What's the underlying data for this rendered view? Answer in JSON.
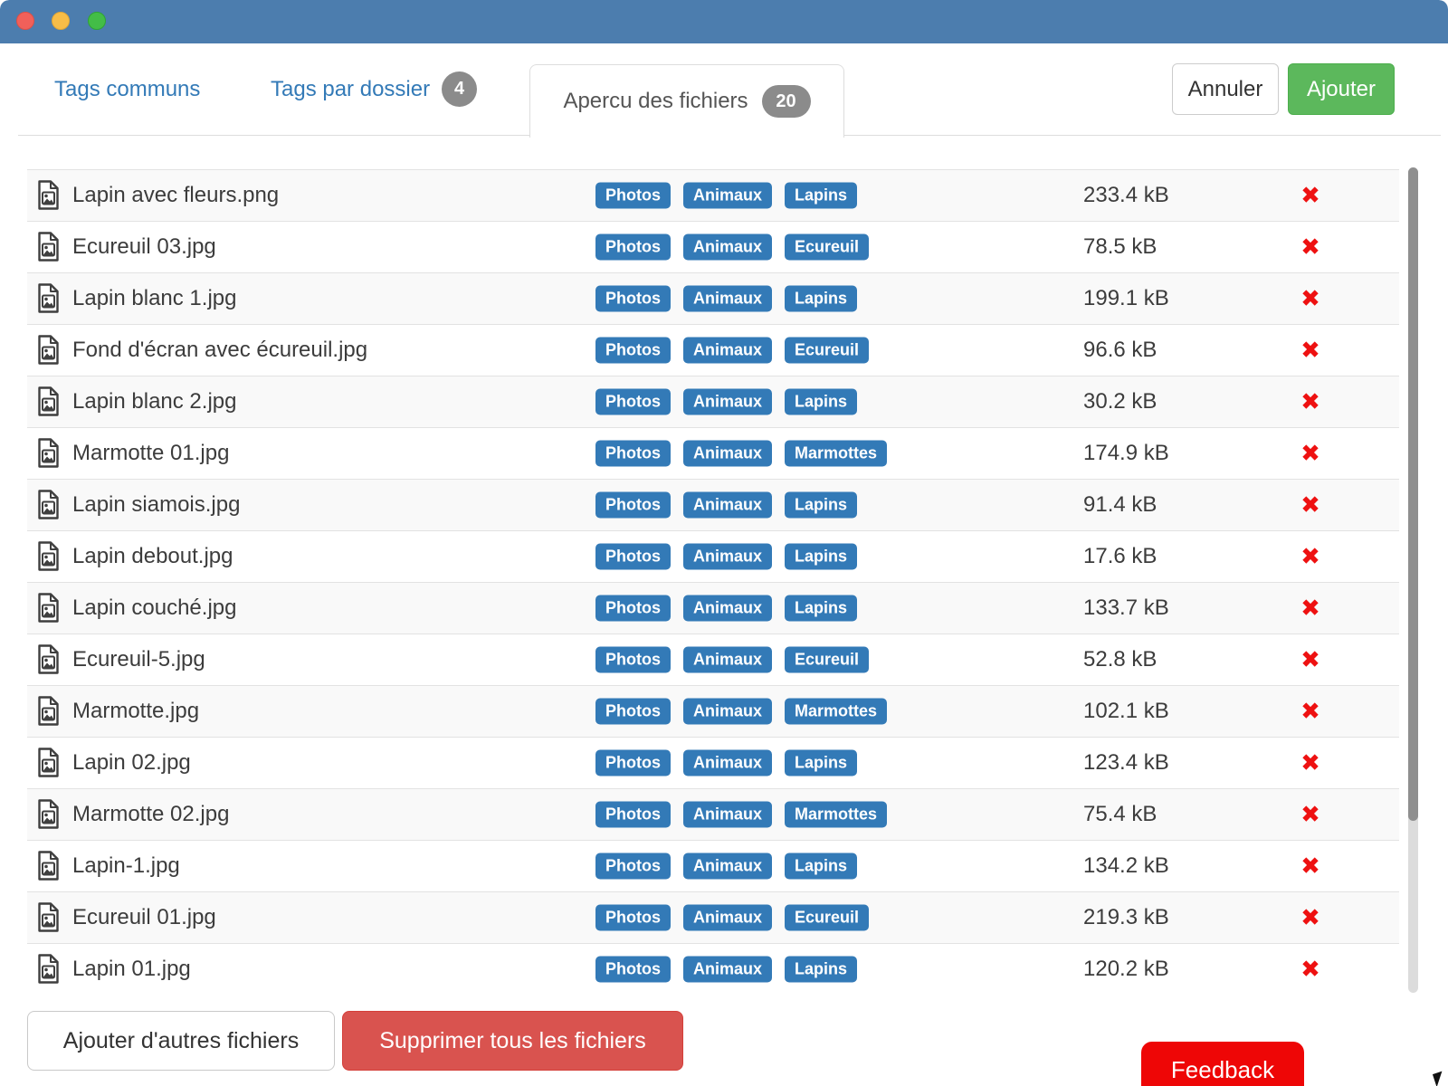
{
  "window": {
    "titlebar_color": "#4c7dae"
  },
  "tabs": [
    {
      "label": "Tags communs",
      "badge": null,
      "active": false
    },
    {
      "label": "Tags par dossier",
      "badge": "4",
      "active": false
    },
    {
      "label": "Apercu des fichiers",
      "badge": "20",
      "active": true
    }
  ],
  "actions": {
    "cancel_label": "Annuler",
    "add_label": "Ajouter"
  },
  "files": [
    {
      "name": "Lapin avec fleurs.png",
      "tags": [
        "Photos",
        "Animaux",
        "Lapins"
      ],
      "size": "233.4 kB"
    },
    {
      "name": "Ecureuil 03.jpg",
      "tags": [
        "Photos",
        "Animaux",
        "Ecureuil"
      ],
      "size": "78.5 kB"
    },
    {
      "name": "Lapin blanc 1.jpg",
      "tags": [
        "Photos",
        "Animaux",
        "Lapins"
      ],
      "size": "199.1 kB"
    },
    {
      "name": "Fond d'écran avec écureuil.jpg",
      "tags": [
        "Photos",
        "Animaux",
        "Ecureuil"
      ],
      "size": "96.6 kB"
    },
    {
      "name": "Lapin blanc 2.jpg",
      "tags": [
        "Photos",
        "Animaux",
        "Lapins"
      ],
      "size": "30.2 kB"
    },
    {
      "name": "Marmotte 01.jpg",
      "tags": [
        "Photos",
        "Animaux",
        "Marmottes"
      ],
      "size": "174.9 kB"
    },
    {
      "name": "Lapin siamois.jpg",
      "tags": [
        "Photos",
        "Animaux",
        "Lapins"
      ],
      "size": "91.4 kB"
    },
    {
      "name": "Lapin debout.jpg",
      "tags": [
        "Photos",
        "Animaux",
        "Lapins"
      ],
      "size": "17.6 kB"
    },
    {
      "name": "Lapin couché.jpg",
      "tags": [
        "Photos",
        "Animaux",
        "Lapins"
      ],
      "size": "133.7 kB"
    },
    {
      "name": "Ecureuil-5.jpg",
      "tags": [
        "Photos",
        "Animaux",
        "Ecureuil"
      ],
      "size": "52.8 kB"
    },
    {
      "name": "Marmotte.jpg",
      "tags": [
        "Photos",
        "Animaux",
        "Marmottes"
      ],
      "size": "102.1 kB"
    },
    {
      "name": "Lapin 02.jpg",
      "tags": [
        "Photos",
        "Animaux",
        "Lapins"
      ],
      "size": "123.4 kB"
    },
    {
      "name": "Marmotte 02.jpg",
      "tags": [
        "Photos",
        "Animaux",
        "Marmottes"
      ],
      "size": "75.4 kB"
    },
    {
      "name": "Lapin-1.jpg",
      "tags": [
        "Photos",
        "Animaux",
        "Lapins"
      ],
      "size": "134.2 kB"
    },
    {
      "name": "Ecureuil 01.jpg",
      "tags": [
        "Photos",
        "Animaux",
        "Ecureuil"
      ],
      "size": "219.3 kB"
    },
    {
      "name": "Lapin 01.jpg",
      "tags": [
        "Photos",
        "Animaux",
        "Lapins"
      ],
      "size": "120.2 kB"
    }
  ],
  "icons": {
    "file_icon": "file-image-icon",
    "delete_glyph": "✖"
  },
  "footer": {
    "add_more_label": "Ajouter d'autres fichiers",
    "delete_all_label": "Supprimer tous les fichiers",
    "feedback_label": "Feedback"
  },
  "colors": {
    "titlebar_blue": "#4c7dae",
    "tag_badge_blue": "#337ab7",
    "count_badge_gray": "#8b8b8b",
    "add_green": "#5cb85c",
    "delete_all_red": "#d9534f",
    "delete_x_red": "#ee1111",
    "feedback_red": "#ee0606"
  }
}
